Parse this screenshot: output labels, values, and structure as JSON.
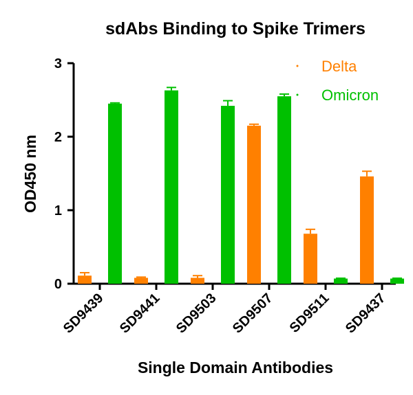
{
  "chart_data": {
    "type": "bar",
    "title": "sdAbs Binding to Spike Trimers",
    "xlabel": "Single Domain Antibodies",
    "ylabel": "OD450 nm",
    "ylim": [
      0,
      3
    ],
    "yticks": [
      "0",
      "1",
      "2",
      "3"
    ],
    "categories": [
      "SD9439",
      "SD9441",
      "SD9503",
      "SD9507",
      "SD9511",
      "SD9437"
    ],
    "series": [
      {
        "name": "Delta",
        "color": "#FF8000",
        "values": [
          0.11,
          0.08,
          0.08,
          2.15,
          0.68,
          1.46
        ],
        "errors": [
          0.04,
          0.01,
          0.03,
          0.02,
          0.06,
          0.07
        ]
      },
      {
        "name": "Omicron",
        "color": "#00C000",
        "values": [
          2.45,
          2.63,
          2.42,
          2.55,
          0.07,
          0.07
        ],
        "errors": [
          0.01,
          0.04,
          0.07,
          0.03,
          0.005,
          0.005
        ]
      }
    ],
    "legend_position": "top-right",
    "grid": false
  }
}
